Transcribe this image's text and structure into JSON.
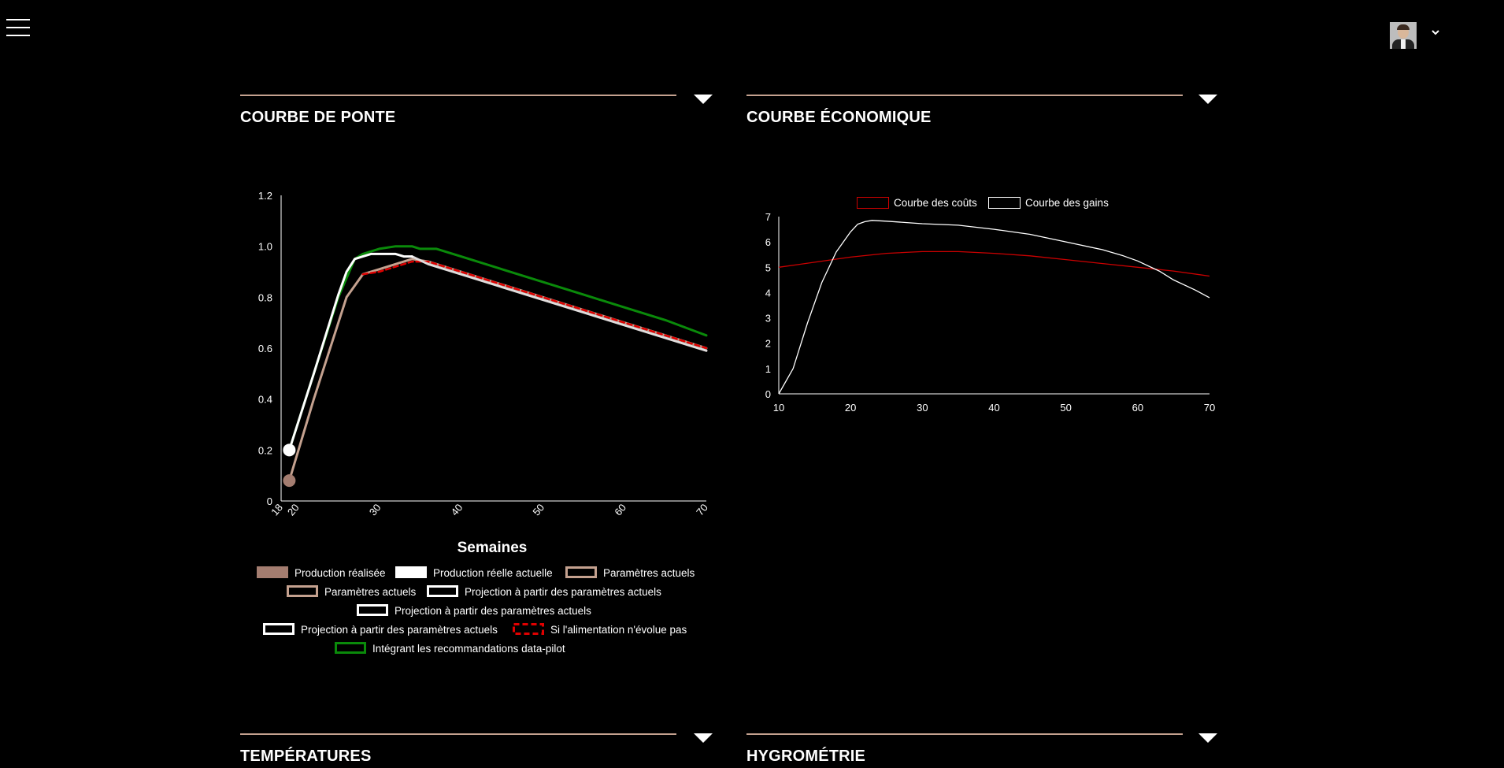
{
  "header": {
    "menu_icon": "hamburger-menu-icon",
    "avatar_icon": "user-avatar-icon",
    "dropdown_icon": "chevron-down-icon"
  },
  "panels": {
    "ponte": {
      "title": "COURBE DE PONTE"
    },
    "eco": {
      "title": "COURBE ÉCONOMIQUE"
    },
    "temp": {
      "title": "TEMPÉRATURES"
    },
    "hygro": {
      "title": "HYGROMÉTRIE"
    }
  },
  "chart_data": [
    {
      "type": "line",
      "title": "",
      "xlabel": "Semaines",
      "ylabel": "",
      "xlim": [
        18,
        70
      ],
      "ylim": [
        0,
        1.2
      ],
      "x_ticks": [
        "18",
        "20",
        "30",
        "40",
        "50",
        "60",
        "70"
      ],
      "y_ticks": [
        "0",
        "0.2",
        "0.4",
        "0.6",
        "0.8",
        "1.0",
        "1.2"
      ],
      "legend_position": "bottom",
      "legend": [
        {
          "label": "Production réalisée",
          "style": "filled",
          "color": "#a47d70"
        },
        {
          "label": "Production réelle actuelle",
          "style": "filled",
          "color": "#ffffff"
        },
        {
          "label": "Paramètres actuels",
          "style": "outline",
          "color": "#c4a18f"
        },
        {
          "label": "Paramètres actuels",
          "style": "outline",
          "color": "#c4a18f"
        },
        {
          "label": "Projection à partir des paramètres actuels",
          "style": "outline",
          "color": "#ffffff"
        },
        {
          "label": "Projection à partir des paramètres actuels",
          "style": "outline",
          "color": "#ffffff"
        },
        {
          "label": "Projection à partir des paramètres actuels",
          "style": "outline",
          "color": "#ffffff"
        },
        {
          "label": "Si l'alimentation n'évolue pas",
          "style": "dashed",
          "color": "#e00000"
        },
        {
          "label": "Intégrant les recommandations data-pilot",
          "style": "outline",
          "color": "#0a8a0a"
        }
      ],
      "markers": [
        {
          "x": 19,
          "y": 0.2,
          "color": "#ffffff"
        },
        {
          "x": 19,
          "y": 0.08,
          "color": "#a47d70"
        }
      ],
      "series": [
        {
          "color": "#0a8a0a",
          "width": 3,
          "x": [
            19,
            22,
            25,
            27,
            28,
            30,
            32,
            34,
            35,
            37,
            40,
            45,
            50,
            55,
            60,
            65,
            70
          ],
          "y": [
            0.2,
            0.5,
            0.8,
            0.95,
            0.97,
            0.99,
            1.0,
            1.0,
            0.99,
            0.99,
            0.96,
            0.91,
            0.86,
            0.81,
            0.76,
            0.71,
            0.65
          ]
        },
        {
          "color": "#c4a18f",
          "width": 3,
          "x": [
            19,
            22,
            25,
            26,
            28,
            30,
            32,
            34,
            36,
            40,
            45,
            50,
            55,
            60,
            65,
            70
          ],
          "y": [
            0.08,
            0.4,
            0.7,
            0.8,
            0.89,
            0.91,
            0.93,
            0.95,
            0.94,
            0.9,
            0.85,
            0.8,
            0.75,
            0.7,
            0.65,
            0.6
          ]
        },
        {
          "color": "#e00000",
          "width": 2.5,
          "dash": "6 4",
          "x": [
            28,
            30,
            32,
            34,
            36,
            40,
            45,
            50,
            55,
            60,
            65,
            70
          ],
          "y": [
            0.89,
            0.9,
            0.92,
            0.94,
            0.94,
            0.9,
            0.85,
            0.8,
            0.75,
            0.7,
            0.65,
            0.6
          ]
        },
        {
          "color": "#e0dcdc",
          "width": 3,
          "x": [
            34,
            36,
            40,
            45,
            50,
            55,
            60,
            65,
            70
          ],
          "y": [
            0.96,
            0.93,
            0.89,
            0.84,
            0.79,
            0.74,
            0.69,
            0.64,
            0.59
          ]
        },
        {
          "color": "#ffffff",
          "width": 3,
          "x": [
            19,
            22,
            25,
            26,
            27,
            28,
            29,
            30,
            32,
            33,
            34
          ],
          "y": [
            0.2,
            0.5,
            0.81,
            0.9,
            0.95,
            0.96,
            0.97,
            0.97,
            0.97,
            0.96,
            0.96
          ]
        }
      ]
    },
    {
      "type": "line",
      "title": "",
      "xlabel": "",
      "ylabel": "",
      "xlim": [
        10,
        70
      ],
      "ylim": [
        0,
        7
      ],
      "x_ticks": [
        "10",
        "20",
        "30",
        "40",
        "50",
        "60",
        "70"
      ],
      "y_ticks": [
        "0",
        "1",
        "2",
        "3",
        "4",
        "5",
        "6",
        "7"
      ],
      "legend_position": "top",
      "legend": [
        {
          "label": "Courbe des coûts",
          "color": "#cc0000"
        },
        {
          "label": "Courbe des gains",
          "color": "#ffffff"
        }
      ],
      "series": [
        {
          "name": "Courbe des coûts",
          "color": "#cc0000",
          "x": [
            10,
            15,
            20,
            25,
            30,
            35,
            40,
            45,
            50,
            55,
            60,
            65,
            70
          ],
          "y": [
            5.0,
            5.2,
            5.4,
            5.55,
            5.62,
            5.62,
            5.55,
            5.45,
            5.3,
            5.15,
            5.0,
            4.85,
            4.65
          ]
        },
        {
          "name": "Courbe des gains",
          "color": "#ffffff",
          "x": [
            10,
            12,
            14,
            16,
            18,
            20,
            21,
            22,
            23,
            25,
            30,
            35,
            40,
            45,
            50,
            55,
            58,
            60,
            63,
            65,
            68,
            70
          ],
          "y": [
            0.0,
            1.0,
            2.8,
            4.4,
            5.6,
            6.4,
            6.7,
            6.8,
            6.85,
            6.82,
            6.72,
            6.66,
            6.5,
            6.3,
            6.0,
            5.7,
            5.45,
            5.25,
            4.85,
            4.5,
            4.1,
            3.8
          ]
        }
      ]
    }
  ]
}
